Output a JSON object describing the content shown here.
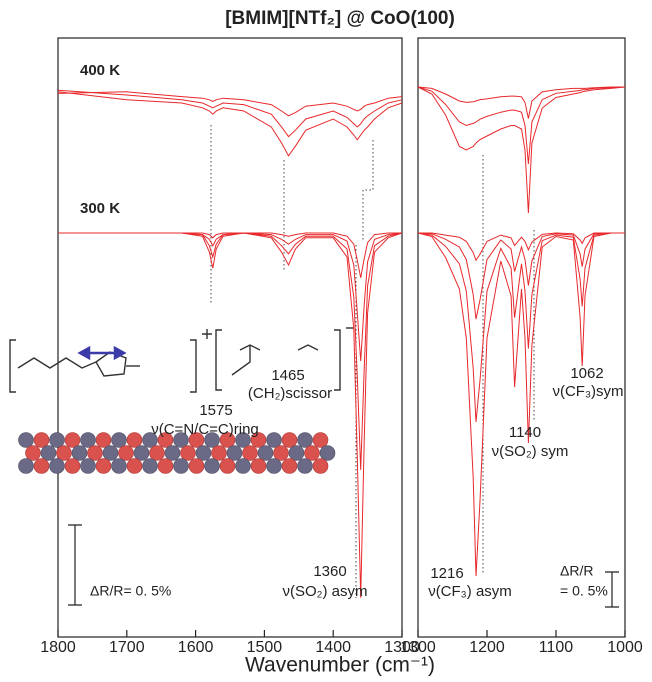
{
  "figure": {
    "title": "[BMIM][NTf₂] @ CoO(100)",
    "x_label": "Wavenumber (cm⁻¹)"
  },
  "chart_data": [
    {
      "type": "line",
      "xlim": [
        1800,
        1300
      ],
      "xticks": [
        1800,
        1700,
        1600,
        1500,
        1400,
        1300
      ],
      "x": [
        1800,
        1700,
        1620,
        1590,
        1580,
        1575,
        1570,
        1560,
        1530,
        1490,
        1475,
        1465,
        1455,
        1440,
        1400,
        1380,
        1370,
        1365,
        1360,
        1355,
        1350,
        1340,
        1320,
        1300
      ],
      "groups": [
        {
          "name": "400 K",
          "series": [
            {
              "color": "#e8282b",
              "values": [
                0.02,
                -0.03,
                -0.05,
                -0.08,
                -0.1,
                -0.12,
                -0.1,
                -0.08,
                -0.1,
                -0.2,
                -0.3,
                -0.38,
                -0.32,
                -0.22,
                -0.15,
                -0.2,
                -0.25,
                -0.28,
                -0.25,
                -0.22,
                -0.2,
                -0.15,
                -0.08,
                -0.05
              ]
            },
            {
              "color": "#e8282b",
              "values": [
                0.03,
                0,
                -0.03,
                -0.05,
                -0.07,
                -0.08,
                -0.07,
                -0.05,
                -0.06,
                -0.12,
                -0.2,
                -0.26,
                -0.22,
                -0.15,
                -0.1,
                -0.14,
                -0.18,
                -0.2,
                -0.18,
                -0.15,
                -0.13,
                -0.1,
                -0.05,
                -0.03
              ]
            },
            {
              "color": "#e8282b",
              "values": [
                0.01,
                0.02,
                -0.01,
                -0.02,
                -0.03,
                -0.04,
                -0.03,
                -0.02,
                -0.03,
                -0.06,
                -0.1,
                -0.13,
                -0.11,
                -0.07,
                -0.05,
                -0.07,
                -0.09,
                -0.1,
                -0.09,
                -0.07,
                -0.06,
                -0.05,
                -0.02,
                -0.01
              ]
            }
          ]
        },
        {
          "name": "300 K",
          "series": [
            {
              "color": "#e8282b",
              "values": [
                0,
                0,
                0,
                -0.02,
                -0.12,
                -0.22,
                -0.1,
                -0.02,
                0,
                -0.03,
                -0.12,
                -0.2,
                -0.1,
                -0.03,
                -0.03,
                -0.15,
                -0.6,
                -1.4,
                -2.28,
                -1.3,
                -0.5,
                -0.12,
                -0.03,
                0
              ]
            },
            {
              "color": "#e8282b",
              "values": [
                0,
                0,
                0,
                -0.01,
                -0.08,
                -0.15,
                -0.07,
                -0.01,
                0,
                -0.02,
                -0.08,
                -0.13,
                -0.07,
                -0.02,
                -0.02,
                -0.1,
                -0.4,
                -0.9,
                -1.48,
                -0.85,
                -0.33,
                -0.08,
                -0.02,
                0
              ]
            },
            {
              "color": "#e8282b",
              "values": [
                0,
                0,
                0,
                -0.01,
                -0.04,
                -0.08,
                -0.04,
                -0.01,
                0,
                -0.01,
                -0.04,
                -0.07,
                -0.04,
                -0.01,
                -0.01,
                -0.05,
                -0.2,
                -0.5,
                -0.8,
                -0.45,
                -0.18,
                -0.04,
                -0.01,
                0
              ]
            },
            {
              "color": "#e8282b",
              "values": [
                0,
                0,
                0,
                0,
                -0.01,
                -0.03,
                -0.01,
                0,
                0,
                0,
                -0.01,
                -0.02,
                -0.01,
                0,
                0,
                -0.02,
                -0.07,
                -0.17,
                -0.28,
                -0.16,
                -0.06,
                -0.01,
                0,
                0
              ]
            }
          ]
        }
      ],
      "annotations": [
        {
          "lines": [
            "1465",
            "(CH₂)scissor"
          ]
        },
        {
          "lines": [
            "1575",
            "ν(C=N/C=C)ring"
          ]
        },
        {
          "lines": [
            "1360",
            "ν(SO₂) asym"
          ]
        }
      ],
      "scale_bar": {
        "value": 0.5,
        "label": [
          "ΔR/R= 0. 5%"
        ]
      }
    },
    {
      "type": "line",
      "xlim": [
        1300,
        1000
      ],
      "xticks": [
        1300,
        1200,
        1100,
        1000
      ],
      "x": [
        1300,
        1280,
        1260,
        1240,
        1230,
        1220,
        1216,
        1210,
        1200,
        1180,
        1165,
        1160,
        1150,
        1145,
        1140,
        1135,
        1120,
        1100,
        1075,
        1065,
        1062,
        1058,
        1045,
        1020,
        1000
      ],
      "groups": [
        {
          "series": [
            {
              "color": "#e8282b",
              "values": [
                0,
                -0.1,
                -0.4,
                -0.85,
                -0.9,
                -0.85,
                -0.8,
                -0.75,
                -0.7,
                -0.6,
                -0.55,
                -0.55,
                -0.6,
                -0.9,
                -1.8,
                -0.8,
                -0.3,
                -0.15,
                -0.1,
                -0.08,
                -0.07,
                -0.06,
                -0.04,
                -0.02,
                0
              ]
            },
            {
              "color": "#e8282b",
              "values": [
                0,
                -0.06,
                -0.25,
                -0.5,
                -0.55,
                -0.52,
                -0.5,
                -0.46,
                -0.42,
                -0.36,
                -0.33,
                -0.33,
                -0.36,
                -0.55,
                -1.1,
                -0.5,
                -0.18,
                -0.09,
                -0.06,
                -0.05,
                -0.04,
                -0.04,
                -0.02,
                -0.01,
                0
              ]
            },
            {
              "color": "#e8282b",
              "values": [
                0,
                -0.02,
                -0.1,
                -0.2,
                -0.22,
                -0.21,
                -0.2,
                -0.18,
                -0.17,
                -0.14,
                -0.13,
                -0.13,
                -0.14,
                -0.22,
                -0.45,
                -0.2,
                -0.07,
                -0.04,
                -0.02,
                -0.02,
                -0.02,
                -0.02,
                -0.01,
                0,
                0
              ]
            }
          ]
        },
        {
          "series": [
            {
              "color": "#e8282b",
              "values": [
                0,
                -0.05,
                -0.35,
                -0.8,
                -1.5,
                -3.5,
                -4.9,
                -3.8,
                -1.5,
                -0.4,
                -0.9,
                -2.2,
                -0.8,
                -1.5,
                -3.0,
                -1.6,
                -0.2,
                -0.05,
                -0.1,
                -1.2,
                -1.9,
                -0.9,
                -0.05,
                0,
                0
              ]
            },
            {
              "color": "#e8282b",
              "values": [
                0,
                -0.03,
                -0.19,
                -0.44,
                -0.83,
                -1.93,
                -2.7,
                -2.09,
                -0.83,
                -0.22,
                -0.5,
                -1.21,
                -0.44,
                -0.83,
                -1.65,
                -0.88,
                -0.11,
                -0.03,
                -0.06,
                -0.66,
                -1.05,
                -0.5,
                -0.03,
                0,
                0
              ]
            },
            {
              "color": "#e8282b",
              "values": [
                0,
                -0.01,
                -0.09,
                -0.2,
                -0.38,
                -0.88,
                -1.23,
                -0.95,
                -0.38,
                -0.1,
                -0.23,
                -0.55,
                -0.2,
                -0.38,
                -0.75,
                -0.4,
                -0.05,
                -0.01,
                -0.03,
                -0.3,
                -0.48,
                -0.23,
                -0.01,
                0,
                0
              ]
            },
            {
              "color": "#e8282b",
              "values": [
                0,
                0,
                -0.03,
                -0.06,
                -0.12,
                -0.28,
                -0.39,
                -0.3,
                -0.12,
                -0.03,
                -0.07,
                -0.18,
                -0.06,
                -0.12,
                -0.24,
                -0.13,
                -0.02,
                0,
                -0.01,
                -0.1,
                -0.15,
                -0.07,
                0,
                0,
                0
              ]
            }
          ]
        }
      ],
      "annotations": [
        {
          "lines": [
            "1062",
            "ν(CF₃)sym"
          ]
        },
        {
          "lines": [
            "1140",
            "ν(SO₂) sym"
          ]
        },
        {
          "lines": [
            "1216",
            "ν(CF₃) asym"
          ]
        }
      ],
      "scale_bar": {
        "value": 0.5,
        "label": [
          "ΔR/R",
          "= 0. 5%"
        ]
      }
    }
  ]
}
